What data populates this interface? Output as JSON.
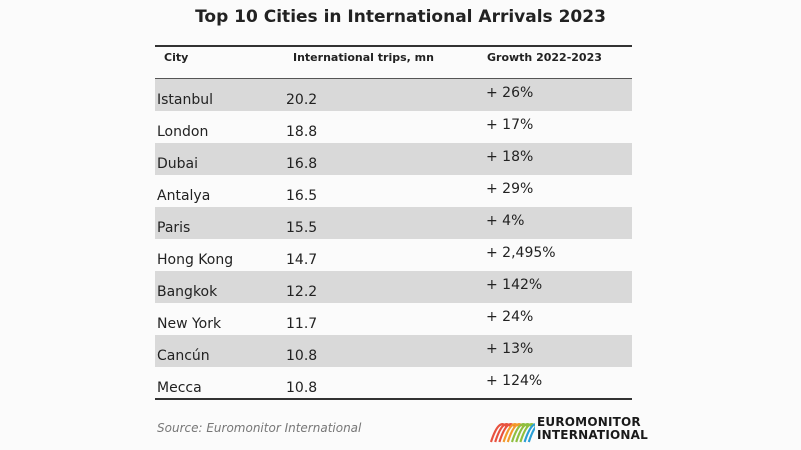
{
  "title": "Top 10 Cities in International Arrivals 2023",
  "table": {
    "headers": [
      "City",
      "International trips, mn",
      "Growth 2022-2023"
    ],
    "rows": [
      {
        "city": "Istanbul",
        "trips": "20.2",
        "growth": "+ 26%"
      },
      {
        "city": "London",
        "trips": "18.8",
        "growth": "+ 17%"
      },
      {
        "city": "Dubai",
        "trips": "16.8",
        "growth": "+ 18%"
      },
      {
        "city": "Antalya",
        "trips": "16.5",
        "growth": "+ 29%"
      },
      {
        "city": "Paris",
        "trips": "15.5",
        "growth": "+ 4%"
      },
      {
        "city": "Hong Kong",
        "trips": "14.7",
        "growth": "+ 2,495%"
      },
      {
        "city": "Bangkok",
        "trips": "12.2",
        "growth": "+ 142%"
      },
      {
        "city": "New York",
        "trips": "11.7",
        "growth": "+ 24%"
      },
      {
        "city": "Cancún",
        "trips": "10.8",
        "growth": "+ 13%"
      },
      {
        "city": "Mecca",
        "trips": "10.8",
        "growth": "+ 124%"
      }
    ],
    "shade_color": "#d9d9d9"
  },
  "chart_data": {
    "type": "table",
    "title": "Top 10 Cities in International Arrivals 2023",
    "columns": [
      "City",
      "International trips, mn",
      "Growth 2022-2023"
    ],
    "categories": [
      "Istanbul",
      "London",
      "Dubai",
      "Antalya",
      "Paris",
      "Hong Kong",
      "Bangkok",
      "New York",
      "Cancún",
      "Mecca"
    ],
    "series": [
      {
        "name": "International trips, mn",
        "values": [
          20.2,
          18.8,
          16.8,
          16.5,
          15.5,
          14.7,
          12.2,
          11.7,
          10.8,
          10.8
        ]
      },
      {
        "name": "Growth 2022-2023",
        "values": [
          26,
          17,
          18,
          29,
          4,
          2495,
          142,
          24,
          13,
          124
        ]
      }
    ]
  },
  "source": "Source: Euromonitor International",
  "logo": {
    "line1": "EUROMONITOR",
    "line2": "INTERNATIONAL",
    "colors": [
      "#e8523f",
      "#f39a2b",
      "#8fbf3f",
      "#2a9fd6"
    ]
  }
}
